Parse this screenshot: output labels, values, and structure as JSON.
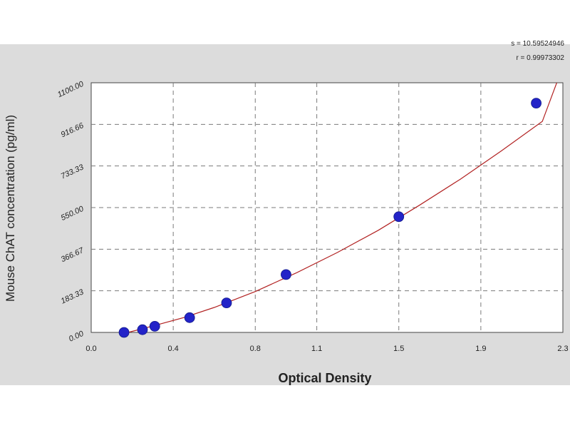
{
  "stats": {
    "s_text": "s = 10.59524946",
    "r_text": "r = 0.99973302"
  },
  "chart_data": {
    "type": "scatter",
    "title": "",
    "xlabel": "Optical Density",
    "ylabel": "Mouse ChAT  concentration (pg/ml)",
    "xlim": [
      0.0,
      2.3
    ],
    "ylim": [
      0,
      1100
    ],
    "x_ticks": [
      0.0,
      0.4,
      0.8,
      1.1,
      1.5,
      1.9,
      2.3
    ],
    "x_tick_labels": [
      "0.0",
      "0.4",
      "0.8",
      "1.1",
      "1.5",
      "1.9",
      "2.3"
    ],
    "y_ticks": [
      0,
      183.33,
      366.67,
      550,
      733.33,
      916.66,
      1100
    ],
    "y_tick_labels": [
      "0.00",
      "183.33",
      "366.67",
      "550.00",
      "733.33",
      "916.66",
      "1100.00"
    ],
    "grid": true,
    "points": {
      "x": [
        0.16,
        0.25,
        0.31,
        0.48,
        0.66,
        0.95,
        1.5,
        2.17
      ],
      "y": [
        0,
        12,
        27,
        65,
        130,
        255,
        510,
        1010
      ]
    },
    "fit_curve": {
      "x": [
        0.18,
        0.3,
        0.45,
        0.6,
        0.8,
        1.0,
        1.2,
        1.4,
        1.6,
        1.8,
        2.0,
        2.2,
        2.27
      ],
      "y": [
        0,
        28,
        65,
        110,
        180,
        262,
        352,
        450,
        560,
        675,
        800,
        930,
        1100
      ]
    },
    "colors": {
      "points": "#2323c8",
      "curve": "#b22222",
      "grid": "#7a7a7a",
      "plot_bg": "#ffffff",
      "panel_bg": "#dcdcdc"
    }
  }
}
